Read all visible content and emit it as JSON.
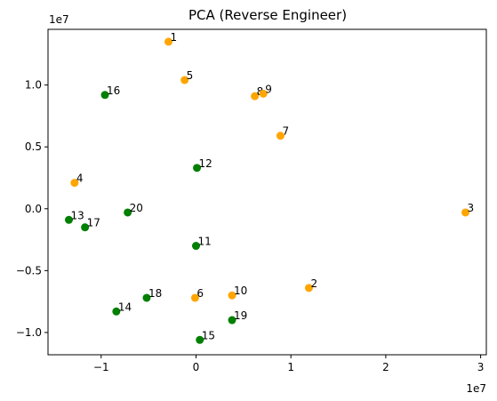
{
  "chart_data": {
    "type": "scatter",
    "title": "PCA (Reverse Engineer)",
    "xlabel": "",
    "ylabel": "",
    "x_multiplier_label": "1e7",
    "y_multiplier_label": "1e7",
    "xlim": [
      -1.56,
      3.06
    ],
    "ylim": [
      -1.18,
      1.45
    ],
    "xticks": [
      -1,
      0,
      1,
      2,
      3
    ],
    "xtick_labels": [
      "−1",
      "0",
      "1",
      "2",
      "3"
    ],
    "yticks": [
      -1.0,
      -0.5,
      0.0,
      0.5,
      1.0
    ],
    "ytick_labels": [
      "−1.0",
      "−0.5",
      "0.0",
      "0.5",
      "1.0"
    ],
    "grid": false,
    "colors": {
      "group_a": "#ffa500",
      "group_b": "#008000"
    },
    "points": [
      {
        "label": "1",
        "x": -0.29,
        "y": 1.35,
        "color": "group_a"
      },
      {
        "label": "2",
        "x": 1.19,
        "y": -0.64,
        "color": "group_a"
      },
      {
        "label": "3",
        "x": 2.84,
        "y": -0.03,
        "color": "group_a"
      },
      {
        "label": "4",
        "x": -1.28,
        "y": 0.21,
        "color": "group_a"
      },
      {
        "label": "5",
        "x": -0.12,
        "y": 1.04,
        "color": "group_a"
      },
      {
        "label": "6",
        "x": -0.01,
        "y": -0.72,
        "color": "group_a"
      },
      {
        "label": "7",
        "x": 0.89,
        "y": 0.59,
        "color": "group_a"
      },
      {
        "label": "8",
        "x": 0.62,
        "y": 0.91,
        "color": "group_a"
      },
      {
        "label": "9",
        "x": 0.71,
        "y": 0.93,
        "color": "group_a"
      },
      {
        "label": "10",
        "x": 0.38,
        "y": -0.7,
        "color": "group_a"
      },
      {
        "label": "11",
        "x": 0.0,
        "y": -0.3,
        "color": "group_b"
      },
      {
        "label": "12",
        "x": 0.01,
        "y": 0.33,
        "color": "group_b"
      },
      {
        "label": "13",
        "x": -1.34,
        "y": -0.09,
        "color": "group_b"
      },
      {
        "label": "14",
        "x": -0.84,
        "y": -0.83,
        "color": "group_b"
      },
      {
        "label": "15",
        "x": 0.04,
        "y": -1.06,
        "color": "group_b"
      },
      {
        "label": "16",
        "x": -0.96,
        "y": 0.92,
        "color": "group_b"
      },
      {
        "label": "17",
        "x": -1.17,
        "y": -0.15,
        "color": "group_b"
      },
      {
        "label": "18",
        "x": -0.52,
        "y": -0.72,
        "color": "group_b"
      },
      {
        "label": "19",
        "x": 0.38,
        "y": -0.9,
        "color": "group_b"
      },
      {
        "label": "20",
        "x": -0.72,
        "y": -0.03,
        "color": "group_b"
      }
    ]
  }
}
